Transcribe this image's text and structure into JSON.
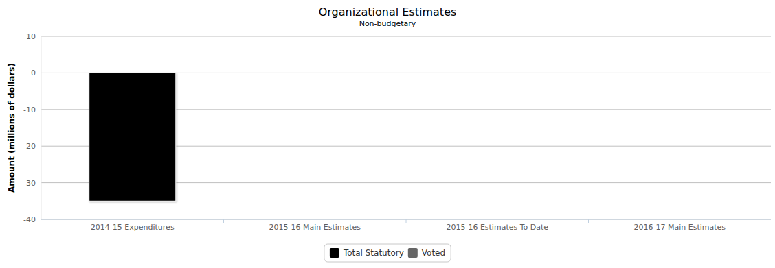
{
  "chart_data": {
    "type": "bar",
    "title": "Organizational Estimates",
    "subtitle": "Non-budgetary",
    "y_label": "Amount (millions of dollars)",
    "categories": [
      "2014-15 Expenditures",
      "2015-16 Main Estimates",
      "2015-16 Estimates To Date",
      "2016-17 Main Estimates"
    ],
    "series": [
      {
        "name": "Total Statutory",
        "color": "#000000",
        "values": [
          -35,
          null,
          null,
          null
        ]
      },
      {
        "name": "Voted",
        "color": "#666666",
        "values": [
          null,
          null,
          null,
          null
        ]
      }
    ],
    "ylim": [
      -40,
      10
    ],
    "yticks": [
      -40,
      -30,
      -20,
      -10,
      0,
      10
    ],
    "grid": true,
    "stacked": true,
    "legend": "bottom"
  }
}
